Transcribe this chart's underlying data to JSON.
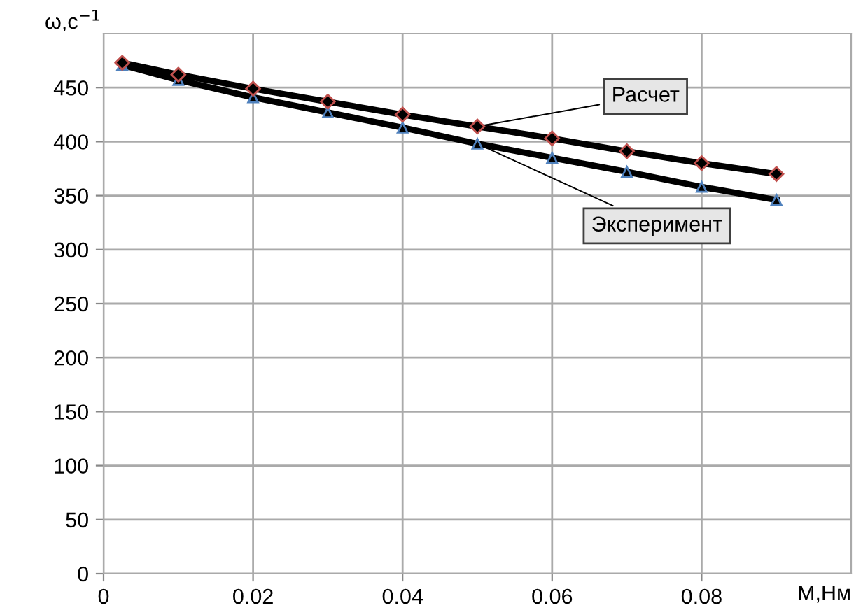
{
  "chart_data": {
    "type": "line",
    "xlabel": "M,Нм",
    "ylabel": "ω,с$^{−1}$",
    "x": [
      0.0025,
      0.01,
      0.02,
      0.03,
      0.04,
      0.05,
      0.06,
      0.07,
      0.08,
      0.09
    ],
    "series": [
      {
        "name": "Расчет",
        "color": "#000000",
        "marker": "diamond",
        "values": [
          473,
          462,
          449,
          437,
          425,
          414,
          403,
          391,
          380,
          370
        ]
      },
      {
        "name": "Эксперимент",
        "color": "#000000",
        "marker": "triangle",
        "values": [
          471,
          457,
          441,
          427,
          413,
          398,
          385,
          372,
          358,
          346
        ]
      }
    ],
    "xlim": [
      0,
      0.1
    ],
    "xticks": [
      0,
      0.02,
      0.04,
      0.06,
      0.08
    ],
    "ylim": [
      0,
      500
    ],
    "yticks": [
      0,
      50,
      100,
      150,
      200,
      250,
      300,
      350,
      400,
      450
    ],
    "grid": true,
    "legend": false,
    "line_style": "solid"
  }
}
